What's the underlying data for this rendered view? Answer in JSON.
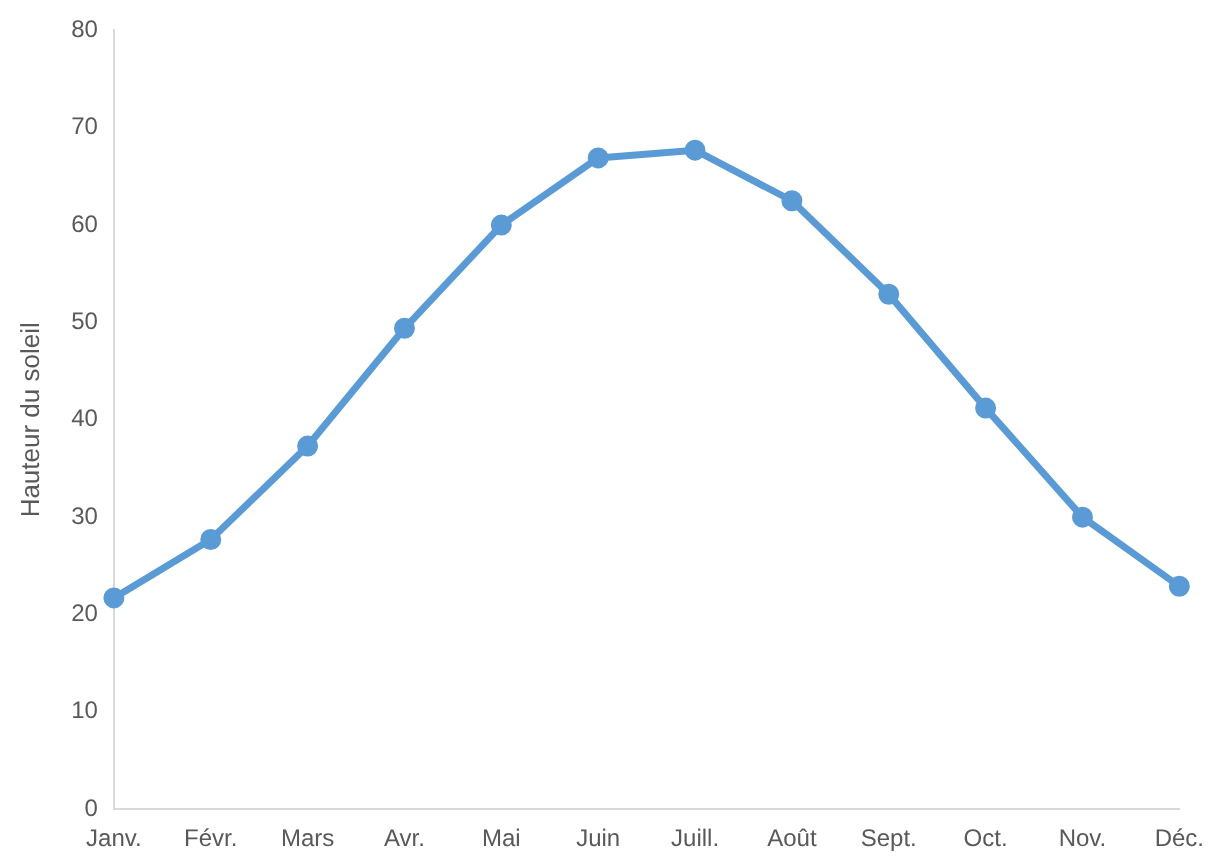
{
  "chart_data": {
    "type": "line",
    "ylabel": "Hauteur du soleil",
    "categories": [
      "Janv.",
      "Févr.",
      "Mars",
      "Avr.",
      "Mai",
      "Juin",
      "Juill.",
      "Août",
      "Sept.",
      "Oct.",
      "Nov.",
      "Déc."
    ],
    "series": [
      {
        "color": "#5b9bd5",
        "values": [
          21.7,
          27.7,
          37.3,
          49.4,
          60.0,
          66.9,
          67.7,
          62.5,
          52.9,
          41.2,
          30.0,
          22.9
        ]
      }
    ],
    "ylim": [
      0,
      80
    ],
    "yticks": [
      0,
      10,
      20,
      30,
      40,
      50,
      60,
      70,
      80
    ],
    "grid": false,
    "legend": false,
    "marker": "circle"
  }
}
